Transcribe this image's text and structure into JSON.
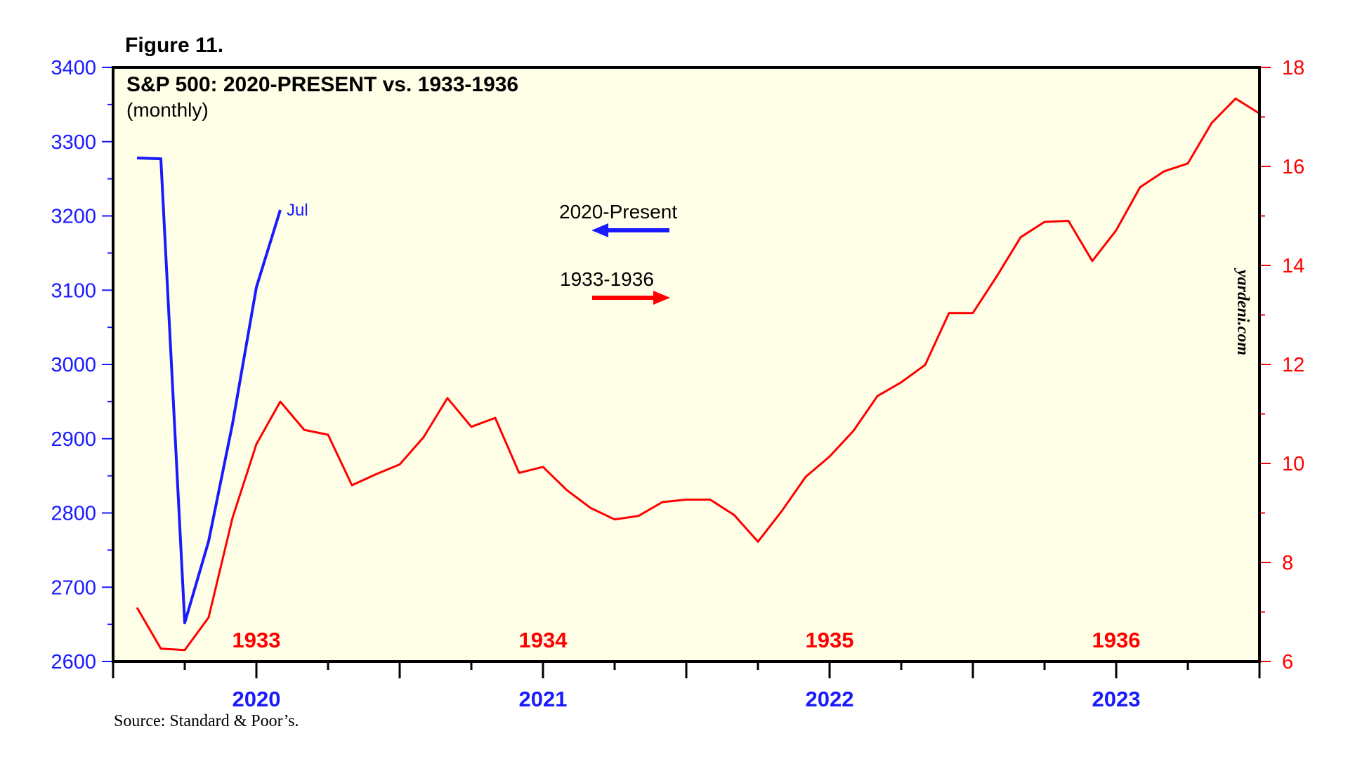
{
  "figure_label": "Figure 11.",
  "source": "Source: Standard & Poor’s.",
  "watermark": "yardeni.com",
  "colors": {
    "left_series": "#1a1aff",
    "right_series": "#ff0000",
    "plot_bg": "#ffffe8",
    "frame": "#000000"
  },
  "chart_data": {
    "type": "line",
    "title": "S&P 500: 2020-PRESENT vs. 1933-1936",
    "subtitle": "(monthly)",
    "left_axis": {
      "ylim": [
        2600,
        3400
      ],
      "ticks": [
        "2600",
        "2700",
        "2800",
        "2900",
        "3000",
        "3100",
        "3200",
        "3300",
        "3400"
      ]
    },
    "right_axis": {
      "ylim": [
        6,
        18
      ],
      "ticks": [
        "6",
        "8",
        "10",
        "12",
        "14",
        "16",
        "18"
      ]
    },
    "x_axis": {
      "months_range": [
        -6,
        42
      ],
      "year_labels": [
        {
          "label": "2020",
          "month": 0
        },
        {
          "label": "2021",
          "month": 12
        },
        {
          "label": "2022",
          "month": 24
        },
        {
          "label": "2023",
          "month": 36
        }
      ]
    },
    "overlay_year_labels": [
      {
        "label": "1933",
        "month": 0
      },
      {
        "label": "1934",
        "month": 12
      },
      {
        "label": "1935",
        "month": 24
      },
      {
        "label": "1936",
        "month": 36
      }
    ],
    "series": [
      {
        "name": "2020-Present",
        "axis": "left",
        "x": [
          -5,
          -4,
          -3,
          -2,
          -1,
          0,
          1
        ],
        "values": [
          3278,
          3277,
          2652,
          2762,
          2920,
          3104,
          3208
        ],
        "end_label": "Jul"
      },
      {
        "name": "1933-1936",
        "axis": "right",
        "x": [
          -5,
          -4,
          -3,
          -2,
          -1,
          0,
          1,
          2,
          3,
          4,
          5,
          6,
          7,
          8,
          9,
          10,
          11,
          12,
          13,
          14,
          15,
          16,
          17,
          18,
          19,
          20,
          21,
          22,
          23,
          24,
          25,
          26,
          27,
          28,
          29,
          30,
          31,
          32,
          33,
          34,
          35,
          36,
          37,
          38,
          39,
          40,
          41,
          42
        ],
        "values": [
          7.09,
          6.26,
          6.23,
          6.89,
          8.9,
          10.39,
          11.25,
          10.68,
          10.58,
          9.56,
          9.78,
          9.98,
          10.53,
          11.32,
          10.74,
          10.92,
          9.81,
          9.93,
          9.46,
          9.1,
          8.87,
          8.94,
          9.22,
          9.27,
          9.27,
          8.96,
          8.42,
          9.04,
          9.73,
          10.14,
          10.66,
          11.36,
          11.64,
          11.99,
          13.04,
          13.04,
          13.78,
          14.57,
          14.88,
          14.9,
          14.09,
          14.71,
          15.58,
          15.9,
          16.06,
          16.88,
          17.37,
          17.07
        ]
      }
    ],
    "legend": [
      {
        "label": "2020-Present",
        "direction": "left-arrow"
      },
      {
        "label": "1933-1936",
        "direction": "right-arrow"
      }
    ]
  }
}
